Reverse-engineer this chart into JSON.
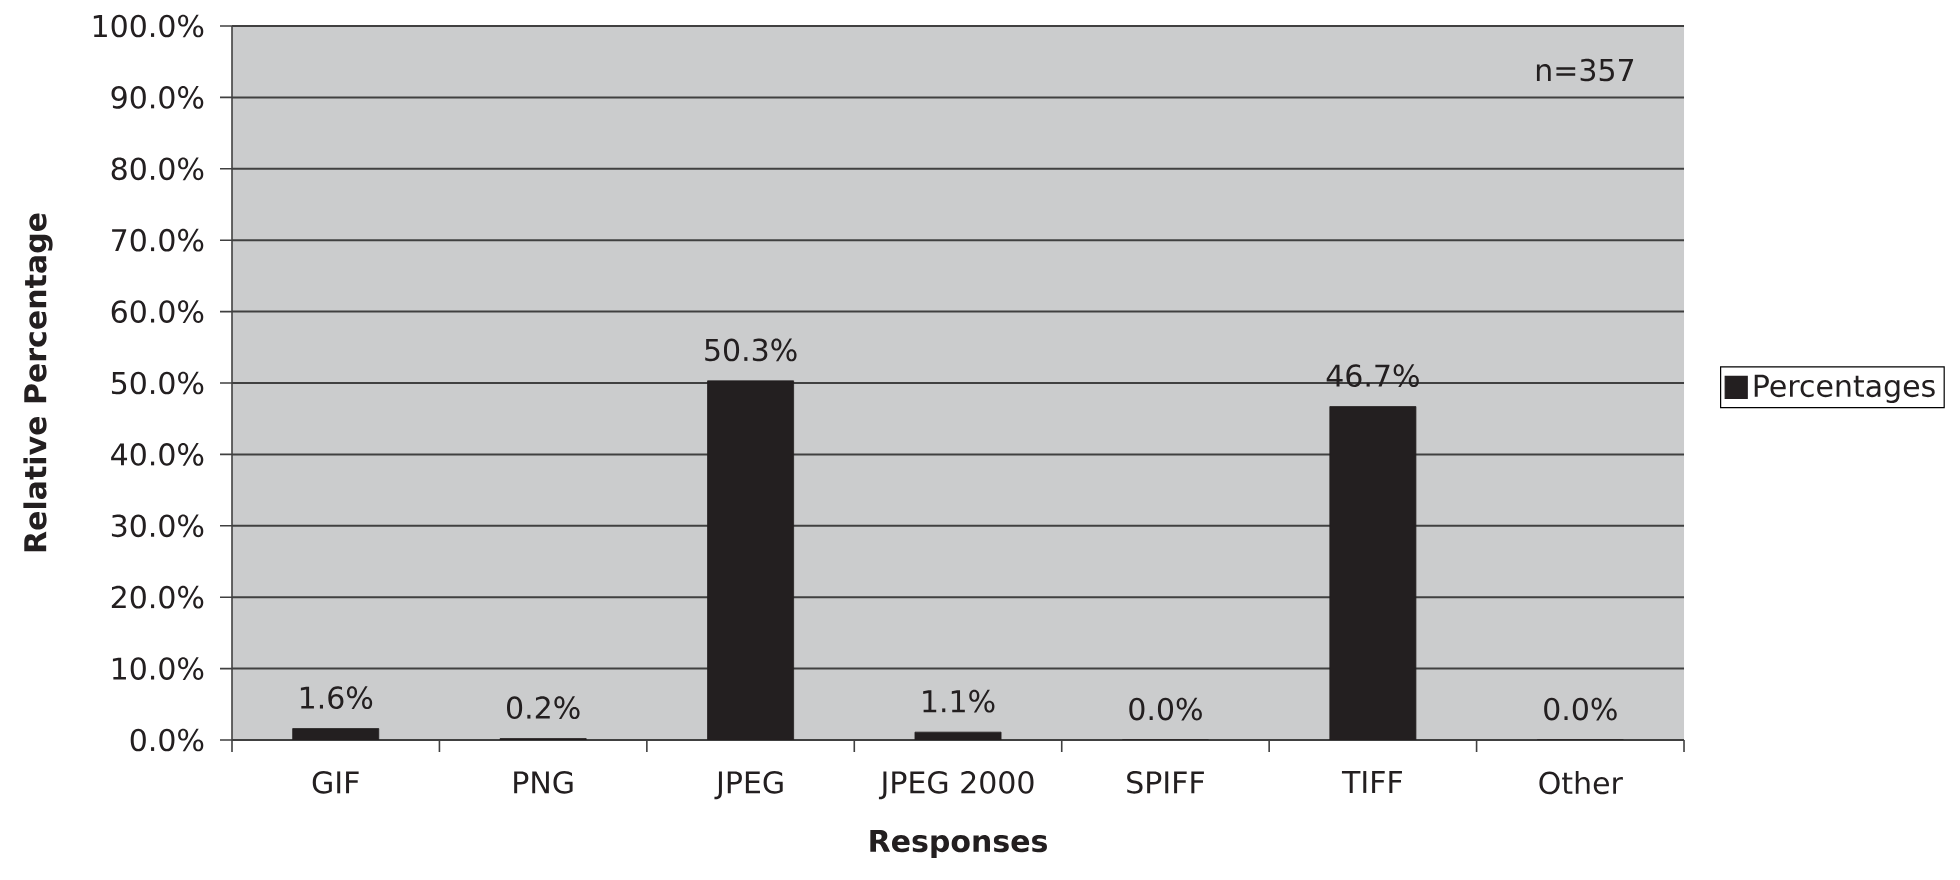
{
  "chart_data": {
    "type": "bar",
    "xlabel": "Responses",
    "ylabel": "Relative Percentage",
    "categories": [
      "GIF",
      "PNG",
      "JPEG",
      "JPEG 2000",
      "SPIFF",
      "TIFF",
      "Other"
    ],
    "series": [
      {
        "name": "Percentages",
        "color": "#231f20",
        "values": [
          1.6,
          0.2,
          50.3,
          1.1,
          0.0,
          46.7,
          0.0
        ],
        "value_labels": [
          "1.6%",
          "0.2%",
          "50.3%",
          "1.1%",
          "0.0%",
          "46.7%",
          "0.0%"
        ]
      }
    ],
    "ylim": [
      0,
      100
    ],
    "yticks": [
      {
        "value": 0,
        "label": "0.0%"
      },
      {
        "value": 10,
        "label": "10.0%"
      },
      {
        "value": 20,
        "label": "20.0%"
      },
      {
        "value": 30,
        "label": "30.0%"
      },
      {
        "value": 40,
        "label": "40.0%"
      },
      {
        "value": 50,
        "label": "50.0%"
      },
      {
        "value": 60,
        "label": "60.0%"
      },
      {
        "value": 70,
        "label": "70.0%"
      },
      {
        "value": 80,
        "label": "80.0%"
      },
      {
        "value": 90,
        "label": "90.0%"
      },
      {
        "value": 100,
        "label": "100.0%"
      }
    ],
    "grid": "y",
    "legend": "right",
    "annotations": [
      "n=357"
    ]
  }
}
